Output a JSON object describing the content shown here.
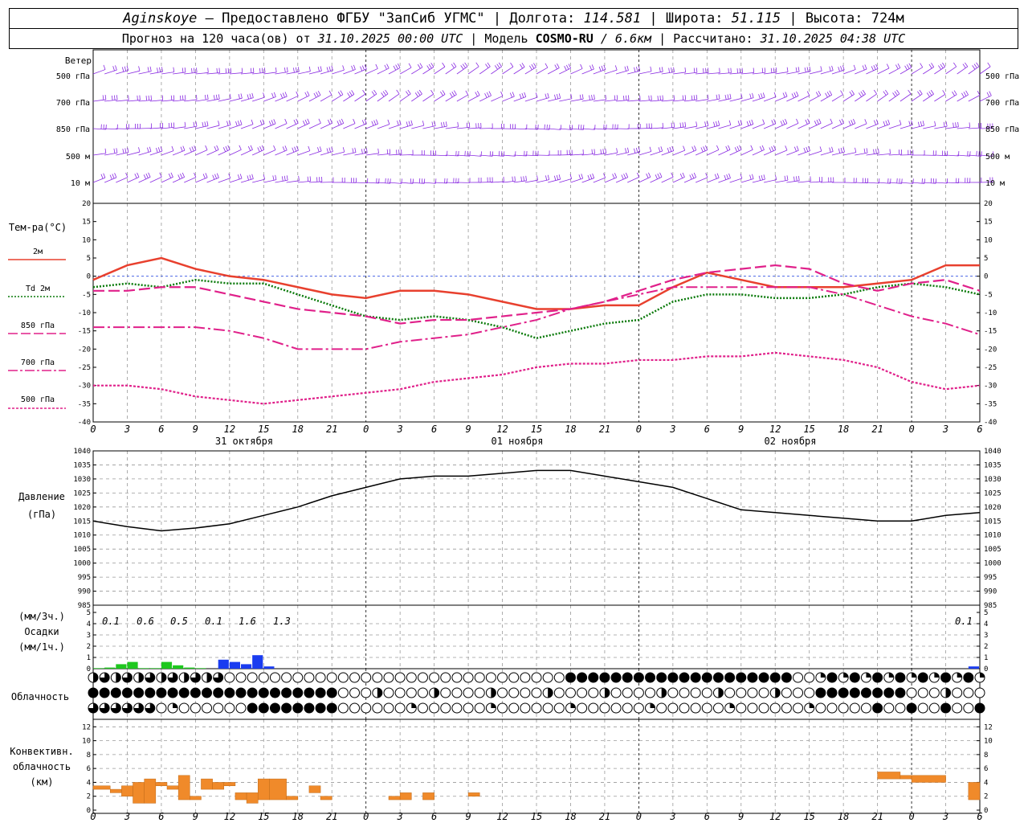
{
  "header": {
    "station": "Aginskoye",
    "dash": " – ",
    "provided": "Предоставлено ФГБУ \"ЗапСиб УГМС\" | Долгота: ",
    "lon": "114.581",
    "lat_label": " | Широта: ",
    "lat": "51.115",
    "alt_label": " | Высота: ",
    "alt": "724м",
    "forecast_label": "Прогноз на 120 часа(ов) от ",
    "start": "31.10.2025 00:00 UTC",
    "model_label": " | Модель ",
    "model": "COSMO-RU",
    "resolution": " / 6.6км",
    "calc_label": " | Рассчитано: ",
    "calc": "31.10.2025 04:38 UTC"
  },
  "colors": {
    "wind": "#8a2be2",
    "t2m": "#e8402e",
    "td2m": "#0a7a0a",
    "t850": "#e0208a",
    "t700": "#e0208a",
    "t500": "#e0208a",
    "precip_green": "#1ec81e",
    "precip_blue": "#1a3cf0",
    "conv": "#f08a2a",
    "zero_line": "#2e4fe0"
  },
  "axis": {
    "hour_ticks": [
      "0",
      "3",
      "6",
      "9",
      "12",
      "15",
      "18",
      "21",
      "0",
      "3",
      "6",
      "9",
      "12",
      "15",
      "18",
      "21",
      "0",
      "3",
      "6",
      "9",
      "12",
      "15",
      "18",
      "21",
      "0",
      "3",
      "6"
    ],
    "days": [
      "31 октября",
      "01 ноября",
      "02 ноября"
    ]
  },
  "wind_panel": {
    "title": "Ветер",
    "levels": [
      "500 гПа",
      "700 гПа",
      "850 гПа",
      "500 м",
      "10  м"
    ]
  },
  "temp_panel": {
    "title": "Тем-ра(°C)",
    "legend": [
      "2м",
      "Td  2м",
      "850 гПа",
      "700 гПа",
      "500 гПа"
    ],
    "ticks": [
      "20",
      "15",
      "10",
      "5",
      "0",
      "-5",
      "-10",
      "-15",
      "-20",
      "-25",
      "-30",
      "-35",
      "-40"
    ]
  },
  "pressure_panel": {
    "title": "Давление",
    "unit": "(гПа)",
    "ticks": [
      "1040",
      "1035",
      "1030",
      "1025",
      "1020",
      "1015",
      "1010",
      "1005",
      "1000",
      "995",
      "990",
      "985"
    ]
  },
  "precip_panel": {
    "title": "Осадки",
    "unit3": "(мм/3ч.)",
    "unit1": "(мм/1ч.)",
    "ticks": [
      "5",
      "4",
      "3",
      "2",
      "1",
      "0"
    ],
    "totals": [
      "0.1",
      "0.6",
      "0.5",
      "0.1",
      "1.6",
      "1.3",
      "0.1"
    ]
  },
  "cloud_panel": {
    "title": "Облачность"
  },
  "conv_panel": {
    "title1": "Конвективн.",
    "title2": "облачность",
    "unit": "(км)",
    "ticks": [
      "12",
      "10",
      "8",
      "6",
      "4",
      "2",
      "0"
    ]
  },
  "chart_data": [
    {
      "type": "line",
      "title": "Тем-ра(°C)",
      "x_hours": [
        0,
        3,
        6,
        9,
        12,
        15,
        18,
        21,
        24,
        27,
        30,
        33,
        36,
        39,
        42,
        45,
        48,
        51,
        54,
        57,
        60,
        63,
        66,
        69,
        72,
        75,
        78
      ],
      "ylim": [
        -40,
        20
      ],
      "series": [
        {
          "name": "2м",
          "values": [
            -1,
            3,
            5,
            2,
            0,
            -1,
            -3,
            -5,
            -6,
            -4,
            -4,
            -5,
            -7,
            -9,
            -9,
            -8,
            -8,
            -3,
            1,
            -1,
            -3,
            -3,
            -3,
            -2,
            -1,
            3,
            3
          ]
        },
        {
          "name": "Td  2м",
          "values": [
            -3,
            -2,
            -3,
            -1,
            -2,
            -2,
            -5,
            -8,
            -11,
            -12,
            -11,
            -12,
            -14,
            -17,
            -15,
            -13,
            -12,
            -7,
            -5,
            -5,
            -6,
            -6,
            -5,
            -3,
            -2,
            -3,
            -5
          ]
        },
        {
          "name": "850 гПа",
          "values": [
            -4,
            -4,
            -3,
            -3,
            -5,
            -7,
            -9,
            -10,
            -11,
            -13,
            -12,
            -12,
            -11,
            -10,
            -9,
            -7,
            -4,
            -1,
            1,
            2,
            3,
            2,
            -2,
            -4,
            -2,
            -1,
            -4
          ]
        },
        {
          "name": "700 гПа",
          "values": [
            -14,
            -14,
            -14,
            -14,
            -15,
            -17,
            -20,
            -20,
            -20,
            -18,
            -17,
            -16,
            -14,
            -12,
            -9,
            -7,
            -5,
            -3,
            -3,
            -3,
            -3,
            -3,
            -5,
            -8,
            -11,
            -13,
            -16
          ]
        },
        {
          "name": "500 гПа",
          "values": [
            -30,
            -30,
            -31,
            -33,
            -34,
            -35,
            -34,
            -33,
            -32,
            -31,
            -29,
            -28,
            -27,
            -25,
            -24,
            -24,
            -23,
            -23,
            -22,
            -22,
            -21,
            -22,
            -23,
            -25,
            -29,
            -31,
            -30
          ]
        }
      ]
    },
    {
      "type": "line",
      "title": "Давление",
      "x_hours": [
        0,
        3,
        6,
        9,
        12,
        15,
        18,
        21,
        24,
        27,
        30,
        33,
        36,
        39,
        42,
        45,
        48,
        51,
        54,
        57,
        60,
        63,
        66,
        69,
        72,
        75,
        78
      ],
      "ylim": [
        985,
        1040
      ],
      "series": [
        {
          "name": "Давление",
          "values": [
            1015,
            1013,
            1011.5,
            1012.5,
            1014,
            1017,
            1020,
            1024,
            1027,
            1030,
            1031,
            1031,
            1032,
            1033,
            1033,
            1031,
            1029,
            1027,
            1023,
            1019,
            1018,
            1017,
            1016,
            1015,
            1015,
            1017,
            1018
          ]
        }
      ]
    },
    {
      "type": "bar",
      "title": "Осадки",
      "x_hours": [
        1,
        2,
        3,
        4,
        5,
        6,
        7,
        8,
        9,
        10,
        11,
        12,
        13,
        14,
        15,
        16,
        17
      ],
      "ylim": [
        0,
        5
      ],
      "series": [
        {
          "name": "snow_green",
          "values": [
            0.05,
            0.1,
            0.4,
            0.6,
            0.05,
            0.05,
            0.6,
            0.3,
            0.1,
            0.05,
            0,
            0,
            0,
            0,
            0,
            0,
            0
          ]
        },
        {
          "name": "snow_blue",
          "values": [
            0,
            0,
            0,
            0,
            0,
            0,
            0,
            0,
            0,
            0,
            0,
            0.8,
            0.6,
            0.4,
            1.2,
            0.2,
            0
          ]
        }
      ]
    },
    {
      "type": "bar",
      "title": "Конвективн. облачность",
      "ylim": [
        0,
        12
      ],
      "segments": [
        {
          "x0": 0,
          "x1": 1.5,
          "base": 3,
          "top": 3.5
        },
        {
          "x0": 1.5,
          "x1": 2.5,
          "base": 2.5,
          "top": 3
        },
        {
          "x0": 2.5,
          "x1": 3.5,
          "base": 2,
          "top": 3.5
        },
        {
          "x0": 3.5,
          "x1": 4.5,
          "base": 1,
          "top": 4
        },
        {
          "x0": 4.5,
          "x1": 5.5,
          "base": 1,
          "top": 4.5
        },
        {
          "x0": 5.5,
          "x1": 6.5,
          "base": 3.5,
          "top": 4
        },
        {
          "x0": 6.5,
          "x1": 7.5,
          "base": 3,
          "top": 3.5
        },
        {
          "x0": 7.5,
          "x1": 8.5,
          "base": 1.5,
          "top": 5
        },
        {
          "x0": 8.5,
          "x1": 9.5,
          "base": 1.5,
          "top": 2
        },
        {
          "x0": 9.5,
          "x1": 10.5,
          "base": 3,
          "top": 4.5
        },
        {
          "x0": 10.5,
          "x1": 11.5,
          "base": 3,
          "top": 4
        },
        {
          "x0": 11.5,
          "x1": 12.5,
          "base": 3.5,
          "top": 4
        },
        {
          "x0": 12.5,
          "x1": 13.5,
          "base": 1.5,
          "top": 2.5
        },
        {
          "x0": 13.5,
          "x1": 14.5,
          "base": 1,
          "top": 2.5
        },
        {
          "x0": 14.5,
          "x1": 15.5,
          "base": 1.5,
          "top": 4.5
        },
        {
          "x0": 15.5,
          "x1": 17,
          "base": 1.5,
          "top": 4.5
        },
        {
          "x0": 17,
          "x1": 18,
          "base": 1.5,
          "top": 2
        },
        {
          "x0": 19,
          "x1": 20,
          "base": 2.5,
          "top": 3.5
        },
        {
          "x0": 20,
          "x1": 21,
          "base": 1.5,
          "top": 2
        },
        {
          "x0": 26,
          "x1": 27,
          "base": 1.5,
          "top": 2
        },
        {
          "x0": 27,
          "x1": 28,
          "base": 1.5,
          "top": 2.5
        },
        {
          "x0": 29,
          "x1": 30,
          "base": 1.5,
          "top": 2.5
        },
        {
          "x0": 33,
          "x1": 34,
          "base": 2,
          "top": 2.5
        },
        {
          "x0": 69,
          "x1": 71,
          "base": 4.5,
          "top": 5.5
        },
        {
          "x0": 71,
          "x1": 72,
          "base": 4.5,
          "top": 5
        },
        {
          "x0": 72,
          "x1": 75,
          "base": 4,
          "top": 5
        },
        {
          "x0": 77,
          "x1": 78,
          "base": 1.5,
          "top": 4
        }
      ]
    }
  ]
}
